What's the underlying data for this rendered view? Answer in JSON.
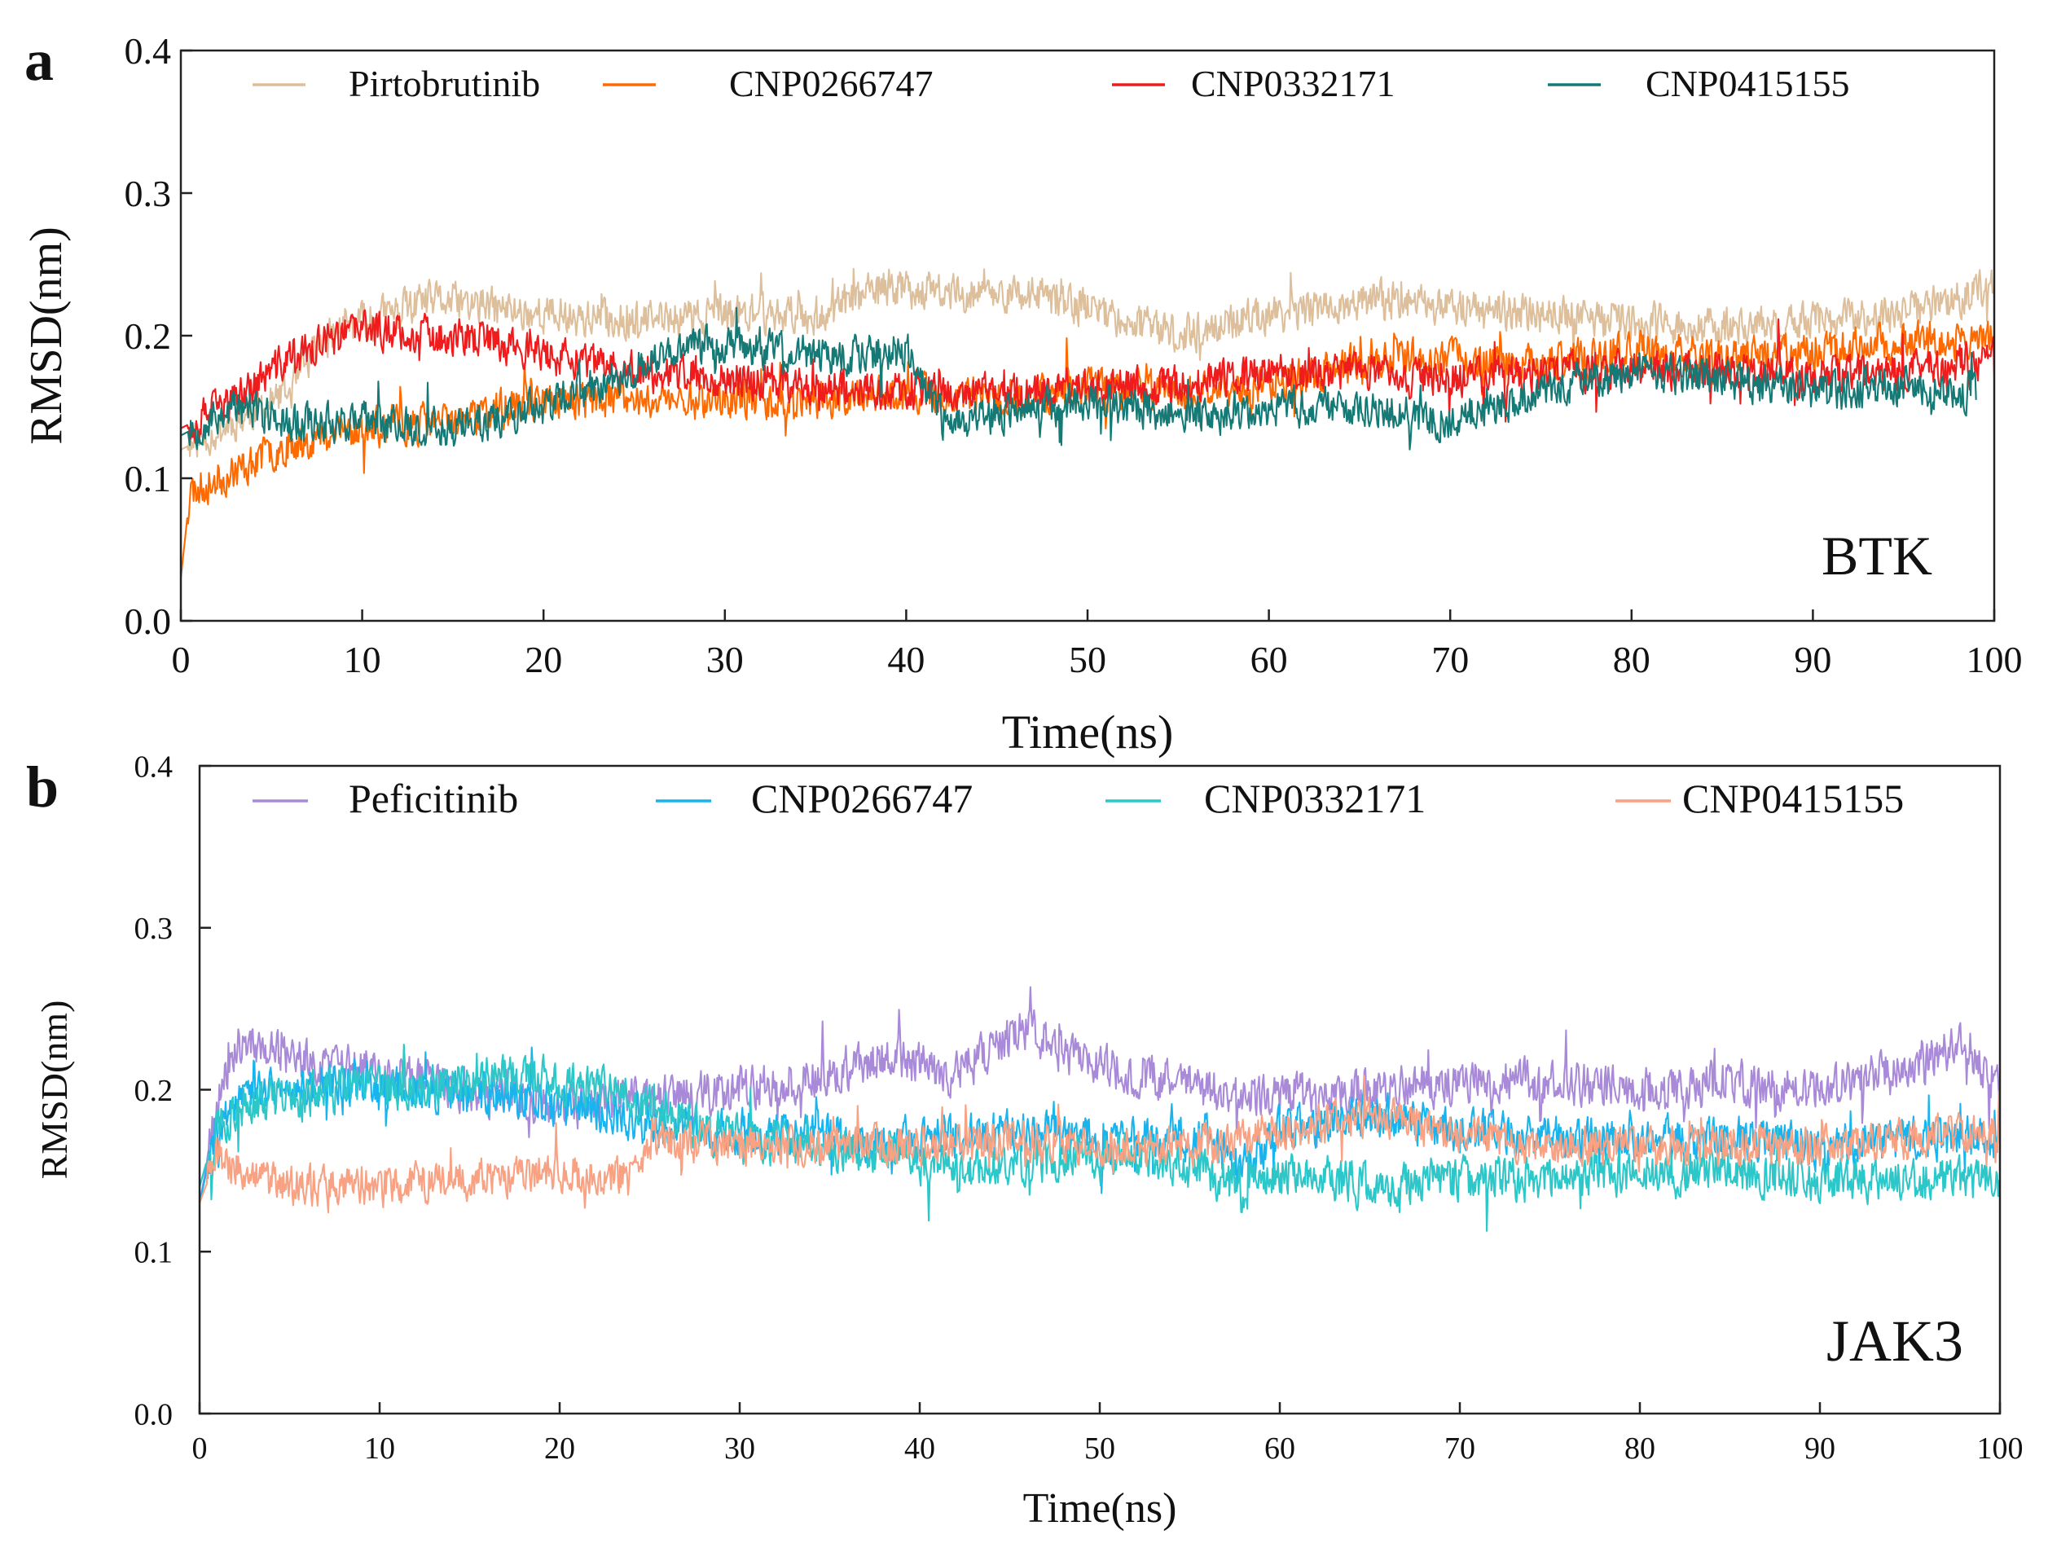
{
  "chart_data": [
    {
      "type": "line",
      "panel_label": "a",
      "annotation": "BTK",
      "xlabel": "Time(ns)",
      "ylabel": "RMSD(nm)",
      "xlim": [
        0,
        100
      ],
      "ylim": [
        0.0,
        0.4
      ],
      "xticks": [
        "0",
        "10",
        "20",
        "30",
        "40",
        "50",
        "60",
        "70",
        "80",
        "90",
        "100"
      ],
      "yticks": [
        "0.0",
        "0.1",
        "0.2",
        "0.3",
        "0.4"
      ],
      "legend_position": "top",
      "series": [
        {
          "name": "Pirtobrutinib",
          "color": "#ddbf9c",
          "trend": [
            [
              0,
              0.12
            ],
            [
              3,
              0.14
            ],
            [
              6,
              0.16
            ],
            [
              8,
              0.2
            ],
            [
              10,
              0.21
            ],
            [
              14,
              0.225
            ],
            [
              20,
              0.215
            ],
            [
              25,
              0.21
            ],
            [
              30,
              0.215
            ],
            [
              35,
              0.215
            ],
            [
              39,
              0.235
            ],
            [
              42,
              0.23
            ],
            [
              46,
              0.23
            ],
            [
              50,
              0.22
            ],
            [
              55,
              0.2
            ],
            [
              60,
              0.215
            ],
            [
              66,
              0.225
            ],
            [
              70,
              0.22
            ],
            [
              75,
              0.215
            ],
            [
              80,
              0.21
            ],
            [
              85,
              0.205
            ],
            [
              90,
              0.21
            ],
            [
              95,
              0.215
            ],
            [
              100,
              0.235
            ]
          ],
          "noise": 0.012,
          "seed": 11
        },
        {
          "name": "CNP0266747",
          "color": "#ff6a00",
          "trend": [
            [
              0,
              0.03
            ],
            [
              0.5,
              0.09
            ],
            [
              3,
              0.105
            ],
            [
              6,
              0.125
            ],
            [
              10,
              0.135
            ],
            [
              15,
              0.14
            ],
            [
              20,
              0.155
            ],
            [
              25,
              0.155
            ],
            [
              30,
              0.155
            ],
            [
              35,
              0.155
            ],
            [
              40,
              0.16
            ],
            [
              45,
              0.155
            ],
            [
              50,
              0.165
            ],
            [
              55,
              0.16
            ],
            [
              60,
              0.165
            ],
            [
              66,
              0.185
            ],
            [
              70,
              0.185
            ],
            [
              75,
              0.18
            ],
            [
              80,
              0.19
            ],
            [
              85,
              0.185
            ],
            [
              90,
              0.19
            ],
            [
              95,
              0.195
            ],
            [
              100,
              0.2
            ]
          ],
          "noise": 0.012,
          "seed": 23
        },
        {
          "name": "CNP0332171",
          "color": "#ee1c1c",
          "trend": [
            [
              0,
              0.135
            ],
            [
              3,
              0.155
            ],
            [
              6,
              0.185
            ],
            [
              10,
              0.205
            ],
            [
              14,
              0.2
            ],
            [
              18,
              0.195
            ],
            [
              22,
              0.18
            ],
            [
              26,
              0.175
            ],
            [
              30,
              0.17
            ],
            [
              35,
              0.165
            ],
            [
              40,
              0.16
            ],
            [
              45,
              0.16
            ],
            [
              50,
              0.165
            ],
            [
              55,
              0.165
            ],
            [
              60,
              0.175
            ],
            [
              65,
              0.175
            ],
            [
              70,
              0.17
            ],
            [
              75,
              0.175
            ],
            [
              80,
              0.175
            ],
            [
              85,
              0.175
            ],
            [
              90,
              0.17
            ],
            [
              95,
              0.175
            ],
            [
              100,
              0.185
            ]
          ],
          "noise": 0.012,
          "seed": 37
        },
        {
          "name": "CNP0415155",
          "color": "#157a76",
          "trend": [
            [
              0,
              0.13
            ],
            [
              3,
              0.15
            ],
            [
              6,
              0.14
            ],
            [
              10,
              0.14
            ],
            [
              15,
              0.135
            ],
            [
              20,
              0.15
            ],
            [
              25,
              0.175
            ],
            [
              28,
              0.195
            ],
            [
              32,
              0.19
            ],
            [
              36,
              0.185
            ],
            [
              40,
              0.19
            ],
            [
              42,
              0.14
            ],
            [
              46,
              0.145
            ],
            [
              50,
              0.155
            ],
            [
              55,
              0.145
            ],
            [
              60,
              0.15
            ],
            [
              65,
              0.15
            ],
            [
              70,
              0.14
            ],
            [
              75,
              0.16
            ],
            [
              80,
              0.175
            ],
            [
              85,
              0.17
            ],
            [
              90,
              0.16
            ],
            [
              95,
              0.165
            ],
            [
              99,
              0.16
            ]
          ],
          "noise": 0.012,
          "seed": 53
        }
      ]
    },
    {
      "type": "line",
      "panel_label": "b",
      "annotation": "JAK3",
      "xlabel": "Time(ns)",
      "ylabel": "RMSD(nm)",
      "xlim": [
        0,
        100
      ],
      "ylim": [
        0.0,
        0.4
      ],
      "xticks": [
        "0",
        "10",
        "20",
        "30",
        "40",
        "50",
        "60",
        "70",
        "80",
        "90",
        "100"
      ],
      "yticks": [
        "0.0",
        "0.1",
        "0.2",
        "0.3",
        "0.4"
      ],
      "legend_position": "top",
      "series": [
        {
          "name": "Peficitinib",
          "color": "#a98ad8",
          "trend": [
            [
              0,
              0.13
            ],
            [
              1,
              0.19
            ],
            [
              2,
              0.23
            ],
            [
              5,
              0.22
            ],
            [
              10,
              0.21
            ],
            [
              15,
              0.2
            ],
            [
              20,
              0.19
            ],
            [
              25,
              0.195
            ],
            [
              30,
              0.2
            ],
            [
              35,
              0.21
            ],
            [
              38,
              0.22
            ],
            [
              42,
              0.21
            ],
            [
              46,
              0.24
            ],
            [
              48,
              0.22
            ],
            [
              52,
              0.21
            ],
            [
              56,
              0.2
            ],
            [
              60,
              0.195
            ],
            [
              65,
              0.2
            ],
            [
              70,
              0.205
            ],
            [
              75,
              0.205
            ],
            [
              80,
              0.2
            ],
            [
              85,
              0.205
            ],
            [
              90,
              0.2
            ],
            [
              95,
              0.215
            ],
            [
              98,
              0.23
            ],
            [
              100,
              0.2
            ]
          ],
          "noise": 0.012,
          "seed": 71
        },
        {
          "name": "CNP0266747",
          "color": "#18b4ee",
          "trend": [
            [
              0,
              0.13
            ],
            [
              1,
              0.18
            ],
            [
              3,
              0.2
            ],
            [
              8,
              0.205
            ],
            [
              12,
              0.2
            ],
            [
              18,
              0.195
            ],
            [
              22,
              0.185
            ],
            [
              26,
              0.175
            ],
            [
              30,
              0.175
            ],
            [
              35,
              0.17
            ],
            [
              40,
              0.17
            ],
            [
              45,
              0.175
            ],
            [
              50,
              0.17
            ],
            [
              55,
              0.17
            ],
            [
              58,
              0.155
            ],
            [
              60,
              0.175
            ],
            [
              65,
              0.185
            ],
            [
              70,
              0.175
            ],
            [
              75,
              0.17
            ],
            [
              80,
              0.17
            ],
            [
              85,
              0.17
            ],
            [
              90,
              0.165
            ],
            [
              95,
              0.17
            ],
            [
              100,
              0.17
            ]
          ],
          "noise": 0.012,
          "seed": 83
        },
        {
          "name": "CNP0332171",
          "color": "#2cc7c9",
          "trend": [
            [
              0,
              0.14
            ],
            [
              1,
              0.18
            ],
            [
              3,
              0.19
            ],
            [
              8,
              0.2
            ],
            [
              12,
              0.2
            ],
            [
              16,
              0.21
            ],
            [
              20,
              0.205
            ],
            [
              24,
              0.195
            ],
            [
              28,
              0.175
            ],
            [
              33,
              0.165
            ],
            [
              38,
              0.16
            ],
            [
              42,
              0.15
            ],
            [
              46,
              0.155
            ],
            [
              50,
              0.16
            ],
            [
              54,
              0.155
            ],
            [
              58,
              0.14
            ],
            [
              61,
              0.15
            ],
            [
              65,
              0.14
            ],
            [
              70,
              0.145
            ],
            [
              75,
              0.145
            ],
            [
              80,
              0.15
            ],
            [
              85,
              0.15
            ],
            [
              90,
              0.145
            ],
            [
              95,
              0.145
            ],
            [
              100,
              0.145
            ]
          ],
          "noise": 0.012,
          "seed": 97
        },
        {
          "name": "CNP0415155",
          "color": "#f8a183",
          "trend": [
            [
              0,
              0.13
            ],
            [
              1,
              0.16
            ],
            [
              3,
              0.145
            ],
            [
              6,
              0.14
            ],
            [
              10,
              0.14
            ],
            [
              15,
              0.145
            ],
            [
              20,
              0.15
            ],
            [
              24,
              0.145
            ],
            [
              25,
              0.17
            ],
            [
              30,
              0.165
            ],
            [
              35,
              0.165
            ],
            [
              40,
              0.165
            ],
            [
              45,
              0.17
            ],
            [
              50,
              0.165
            ],
            [
              55,
              0.165
            ],
            [
              60,
              0.175
            ],
            [
              65,
              0.185
            ],
            [
              70,
              0.17
            ],
            [
              75,
              0.165
            ],
            [
              80,
              0.165
            ],
            [
              85,
              0.165
            ],
            [
              90,
              0.165
            ],
            [
              95,
              0.17
            ],
            [
              100,
              0.175
            ]
          ],
          "noise": 0.011,
          "seed": 109
        }
      ]
    }
  ]
}
